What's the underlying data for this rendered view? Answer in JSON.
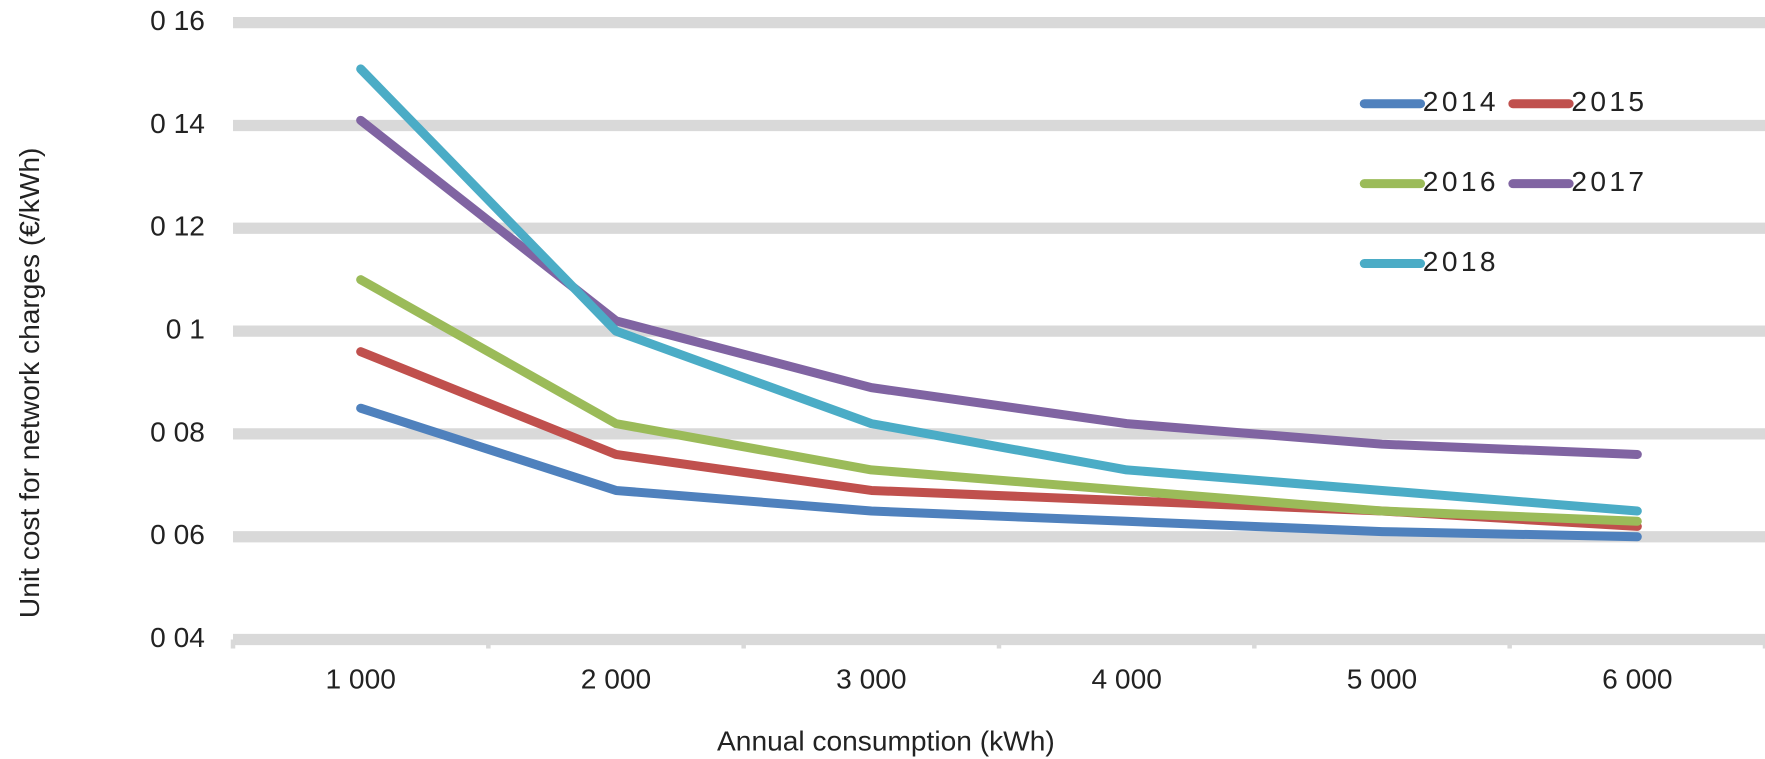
{
  "chart_data": {
    "type": "line",
    "y_label": "Unit cost for network charges  (€/kWh)",
    "x_label": "Annual consumption (kWh)",
    "categories": [
      "1 000",
      "2 000",
      "3 000",
      "4 000",
      "5 000",
      "6 000"
    ],
    "series": [
      {
        "name": "2014",
        "color": "#4f81bd",
        "values": [
          0.085,
          0.069,
          0.065,
          0.063,
          0.061,
          0.06
        ]
      },
      {
        "name": "2015",
        "color": "#c0504d",
        "values": [
          0.096,
          0.076,
          0.069,
          0.067,
          0.065,
          0.062
        ]
      },
      {
        "name": "2016",
        "color": "#9bbb59",
        "values": [
          0.11,
          0.082,
          0.073,
          0.069,
          0.065,
          0.063
        ]
      },
      {
        "name": "2017",
        "color": "#8064a2",
        "values": [
          0.141,
          0.102,
          0.089,
          0.082,
          0.078,
          0.076
        ]
      },
      {
        "name": "2018",
        "color": "#4bacc6",
        "values": [
          0.151,
          0.1,
          0.082,
          0.073,
          0.069,
          0.065
        ]
      }
    ],
    "ylim": [
      0.04,
      0.16
    ],
    "yticks": [
      {
        "value": 0.04,
        "label": "0 04"
      },
      {
        "value": 0.06,
        "label": "0 06"
      },
      {
        "value": 0.08,
        "label": "0 08"
      },
      {
        "value": 0.1,
        "label": "0 1"
      },
      {
        "value": 0.12,
        "label": "0 12"
      },
      {
        "value": 0.14,
        "label": "0 14"
      },
      {
        "value": 0.16,
        "label": "0 16"
      }
    ],
    "grid": true,
    "legend": "top-right"
  }
}
